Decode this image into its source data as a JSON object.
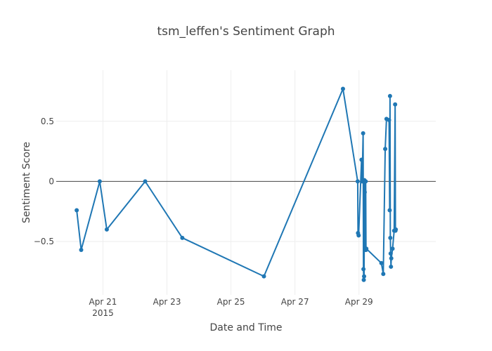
{
  "chart_data": {
    "type": "line",
    "title": "tsm_leffen's Sentiment Graph",
    "xlabel": "Date and Time",
    "ylabel": "Sentiment Score",
    "x_tick_labels": [
      {
        "label": "Apr 21",
        "sublabel": "2015",
        "day": 21
      },
      {
        "label": "Apr 23",
        "sublabel": "",
        "day": 23
      },
      {
        "label": "Apr 25",
        "sublabel": "",
        "day": 25
      },
      {
        "label": "Apr 27",
        "sublabel": "",
        "day": 27
      },
      {
        "label": "Apr 29",
        "sublabel": "",
        "day": 29
      }
    ],
    "y_ticks": [
      {
        "label": "0.5",
        "value": 0.5
      },
      {
        "label": "0",
        "value": 0
      },
      {
        "label": "−0.5",
        "value": -0.5
      }
    ],
    "xlim": [
      19.54,
      31.4
    ],
    "ylim": [
      -0.944,
      0.925
    ],
    "zero_line": true,
    "grid": true,
    "colors": {
      "line": "#1f77b4",
      "grid": "#eeeeee",
      "zero": "#444444"
    },
    "series": [
      {
        "x": [
          20.18,
          20.32,
          20.9,
          21.12,
          22.32,
          23.48,
          26.03,
          28.5,
          28.96,
          28.97,
          28.99,
          29.08,
          29.1,
          29.13,
          29.14,
          29.15,
          29.16,
          29.17,
          29.18,
          29.19,
          29.2,
          29.2,
          29.21,
          29.22,
          29.23,
          29.7,
          29.76,
          29.82,
          29.86,
          29.94,
          29.96,
          29.97,
          29.98,
          29.99,
          30.0,
          30.01,
          30.05,
          30.1,
          30.13,
          30.14,
          30.15
        ],
        "y": [
          -0.24,
          -0.57,
          0.0,
          -0.4,
          0.0,
          -0.47,
          -0.79,
          0.77,
          0.0,
          -0.43,
          -0.45,
          0.18,
          0.0,
          0.4,
          -0.73,
          -0.82,
          -0.79,
          0.01,
          -0.09,
          0.0,
          -0.56,
          -0.57,
          0.0,
          -0.57,
          -0.56,
          -0.68,
          -0.77,
          0.27,
          0.52,
          0.51,
          -0.24,
          0.71,
          -0.47,
          -0.6,
          -0.71,
          -0.64,
          -0.56,
          -0.41,
          0.64,
          -0.41,
          -0.4
        ]
      }
    ]
  }
}
